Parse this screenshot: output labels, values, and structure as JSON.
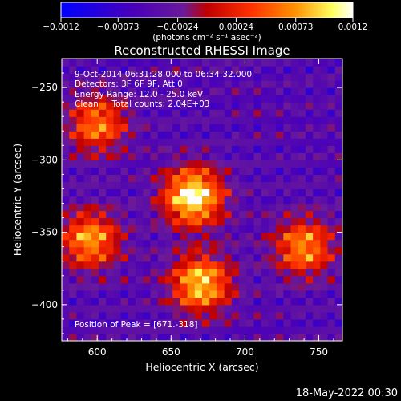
{
  "chart_data": {
    "type": "heatmap",
    "title": "Reconstructed RHESSI Image",
    "xlabel": "Heliocentric X (arcsec)",
    "ylabel": "Heliocentric Y (arcsec)",
    "xlim": [
      576,
      766
    ],
    "ylim": [
      -425,
      -230
    ],
    "x_ticks": [
      600,
      650,
      700,
      750
    ],
    "x_tick_labels": [
      "600",
      "650",
      "700",
      "750"
    ],
    "y_ticks": [
      -250,
      -300,
      -350,
      -400
    ],
    "y_tick_labels": [
      "-250",
      "-300",
      "-350",
      "-400"
    ],
    "colorbar": {
      "range": [
        -0.0012,
        0.0012
      ],
      "ticks": [
        -0.0012,
        -0.00073,
        -0.00024,
        0.00024,
        0.00073,
        0.0012
      ],
      "tick_labels": [
        "-0.0012",
        "-0.00073",
        "-0.00024",
        "0.00024",
        "0.00073",
        "0.0012"
      ],
      "unit_label": "(photons cm⁻² s⁻¹ asec⁻²)",
      "colors": [
        "#0000ff",
        "#4a00b8",
        "#6a1a9a",
        "#c00000",
        "#ff3000",
        "#ff9000",
        "#ffff60",
        "#ffffff"
      ]
    },
    "sources": [
      {
        "x": 665,
        "y": -325,
        "peak": 0.0012
      },
      {
        "x": 670,
        "y": -385,
        "peak": 0.00095
      },
      {
        "x": 740,
        "y": -360,
        "peak": 0.0007
      },
      {
        "x": 595,
        "y": -355,
        "peak": 0.00075
      },
      {
        "x": 600,
        "y": -275,
        "peak": 0.0006
      }
    ],
    "annotations": {
      "time": "9-Oct-2014 06:31:28.000 to 06:34:32.000",
      "detectors": "Detectors: 3F 6F 9F, Att 0",
      "energy": "Energy Range: 12.0 - 25.0 keV",
      "clean": "Clean     Total counts: 2.04E+03",
      "peak": "Position of Peak = [671.-318]"
    },
    "footer_date": "18-May-2022 00:30"
  }
}
